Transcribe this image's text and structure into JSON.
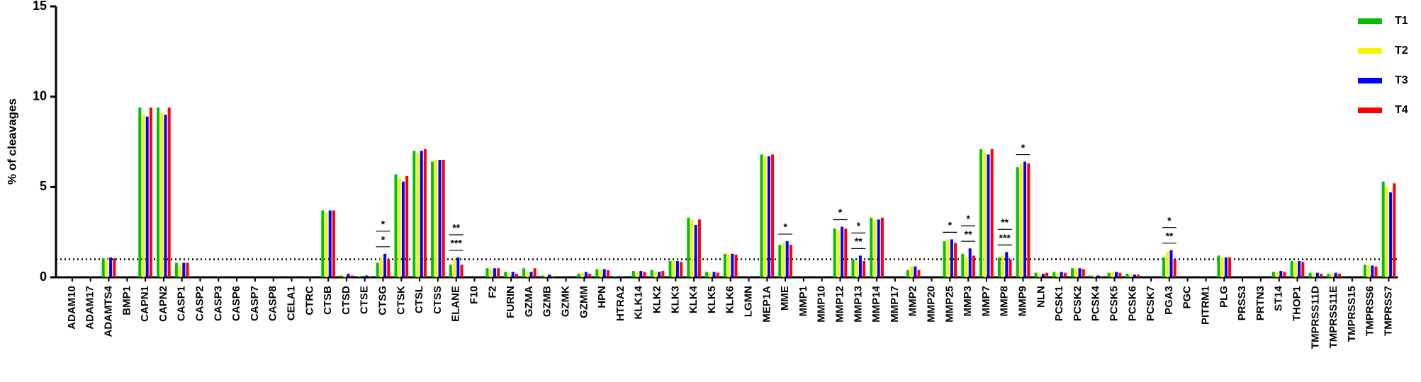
{
  "chart_data": {
    "type": "bar",
    "y_label": "% of cleavages",
    "categories": [
      "ADAM10",
      "ADAM17",
      "ADAMTS4",
      "BMP1",
      "CAPN1",
      "CAPN2",
      "CASP1",
      "CASP2",
      "CASP3",
      "CASP6",
      "CASP7",
      "CASP8",
      "CELA1",
      "CTRC",
      "CTSB",
      "CTSD",
      "CTSE",
      "CTSG",
      "CTSK",
      "CTSL",
      "CTSS",
      "ELANE",
      "F10",
      "F2",
      "FURIN",
      "GZMA",
      "GZMB",
      "GZMK",
      "GZMM",
      "HPN",
      "HTRA2",
      "KLK14",
      "KLK2",
      "KLK3",
      "KLK4",
      "KLK5",
      "KLK6",
      "LGMN",
      "MEP1A",
      "MME",
      "MMP1",
      "MMP10",
      "MMP12",
      "MMP13",
      "MMP14",
      "MMP17",
      "MMP2",
      "MMP20",
      "MMP25",
      "MMP3",
      "MMP7",
      "MMP8",
      "MMP9",
      "NLN",
      "PCSK1",
      "PCSK2",
      "PCSK4",
      "PCSK5",
      "PCSK6",
      "PCSK7",
      "PGA3",
      "PGC",
      "PITRM1",
      "PLG",
      "PRSS3",
      "PRTN3",
      "ST14",
      "THOP1",
      "TMPRSS11D",
      "TMPRSS11E",
      "TMPRSS15",
      "TMPRSS6",
      "TMPRSS7"
    ],
    "series": [
      {
        "name": "T1",
        "color": "#00c000",
        "values": [
          0,
          0,
          1.05,
          0,
          9.4,
          9.4,
          0.8,
          0,
          0,
          0,
          0,
          0,
          0,
          0,
          3.7,
          0.1,
          0.05,
          0.8,
          5.7,
          7.0,
          6.4,
          0.7,
          0,
          0.5,
          0.3,
          0.5,
          0.1,
          0,
          0.2,
          0.45,
          0.05,
          0.35,
          0.4,
          0.9,
          3.3,
          0.3,
          1.3,
          0,
          6.8,
          1.8,
          0,
          0,
          2.7,
          1.0,
          3.3,
          0,
          0.4,
          0,
          2.0,
          1.3,
          7.1,
          1.1,
          6.1,
          0.25,
          0.3,
          0.5,
          0.1,
          0.25,
          0.2,
          0,
          1.1,
          0,
          0,
          1.2,
          0,
          0,
          0.3,
          0.9,
          0.25,
          0.2,
          0,
          0.7,
          5.3
        ]
      },
      {
        "name": "T2",
        "color": "#f5f500",
        "values": [
          0,
          0,
          1.0,
          0,
          9.0,
          9.1,
          0.7,
          0,
          0,
          0,
          0,
          0,
          0,
          0,
          3.6,
          0.1,
          0,
          1.1,
          5.5,
          6.9,
          6.5,
          1.0,
          0,
          0.45,
          0.2,
          0.3,
          0.1,
          0,
          0.25,
          0.4,
          0,
          0.3,
          0.3,
          0.9,
          3.2,
          0.25,
          1.3,
          0,
          6.7,
          1.9,
          0,
          0,
          2.6,
          0.9,
          3.2,
          0,
          0.6,
          0,
          2.1,
          1.1,
          6.9,
          1.2,
          6.3,
          0.2,
          0.25,
          0.5,
          0.05,
          0.3,
          0.15,
          0,
          1.4,
          0,
          0,
          1.1,
          0,
          0,
          0.3,
          0.85,
          0.2,
          0.2,
          0,
          0.65,
          5.0
        ]
      },
      {
        "name": "T3",
        "color": "#0000ff",
        "values": [
          0,
          0,
          1.1,
          0,
          8.9,
          9.0,
          0.8,
          0,
          0,
          0,
          0,
          0,
          0,
          0,
          3.7,
          0.2,
          0.1,
          1.3,
          5.3,
          7.0,
          6.5,
          1.1,
          0,
          0.5,
          0.3,
          0.3,
          0.15,
          0,
          0.3,
          0.45,
          0.05,
          0.35,
          0.3,
          0.9,
          2.9,
          0.3,
          1.3,
          0,
          6.7,
          2.0,
          0,
          0,
          2.8,
          1.2,
          3.2,
          0,
          0.6,
          0,
          2.1,
          1.6,
          6.8,
          1.4,
          6.4,
          0.2,
          0.3,
          0.5,
          0.1,
          0.3,
          0.15,
          0,
          1.5,
          0,
          0,
          1.1,
          0,
          0,
          0.35,
          0.9,
          0.25,
          0.25,
          0,
          0.65,
          4.7
        ]
      },
      {
        "name": "T4",
        "color": "#ff0000",
        "values": [
          0,
          0,
          1.05,
          0,
          9.4,
          9.4,
          0.8,
          0,
          0,
          0,
          0,
          0,
          0,
          0,
          3.7,
          0.1,
          0.05,
          1.0,
          5.6,
          7.1,
          6.5,
          0.7,
          0,
          0.5,
          0.2,
          0.5,
          0.05,
          0,
          0.2,
          0.4,
          0,
          0.3,
          0.35,
          0.85,
          3.2,
          0.25,
          1.25,
          0,
          6.8,
          1.8,
          0,
          0,
          2.7,
          0.9,
          3.3,
          0,
          0.4,
          0,
          1.9,
          1.2,
          7.1,
          1.0,
          6.3,
          0.25,
          0.25,
          0.45,
          0.05,
          0.25,
          0.15,
          0,
          1.0,
          0,
          0,
          1.1,
          0,
          0,
          0.3,
          0.85,
          0.2,
          0.2,
          0,
          0.6,
          5.2
        ]
      }
    ],
    "ylim": [
      0,
      15
    ],
    "yticks": [
      0,
      5,
      10,
      15
    ],
    "reference_line": 1,
    "legend": "upper right",
    "annotations": [
      {
        "category": "CTSG",
        "labels": [
          "*",
          "*"
        ]
      },
      {
        "category": "ELANE",
        "labels": [
          "**",
          "***"
        ]
      },
      {
        "category": "MME",
        "labels": [
          "*"
        ]
      },
      {
        "category": "MMP12",
        "labels": [
          "*"
        ]
      },
      {
        "category": "MMP13",
        "labels": [
          "*",
          "**"
        ]
      },
      {
        "category": "MMP25",
        "labels": [
          "*"
        ]
      },
      {
        "category": "MMP3",
        "labels": [
          "*",
          "**"
        ]
      },
      {
        "category": "MMP8",
        "labels": [
          "**",
          "***"
        ]
      },
      {
        "category": "MMP9",
        "labels": [
          "*"
        ]
      },
      {
        "category": "PGA3",
        "labels": [
          "*",
          "**"
        ]
      }
    ]
  }
}
